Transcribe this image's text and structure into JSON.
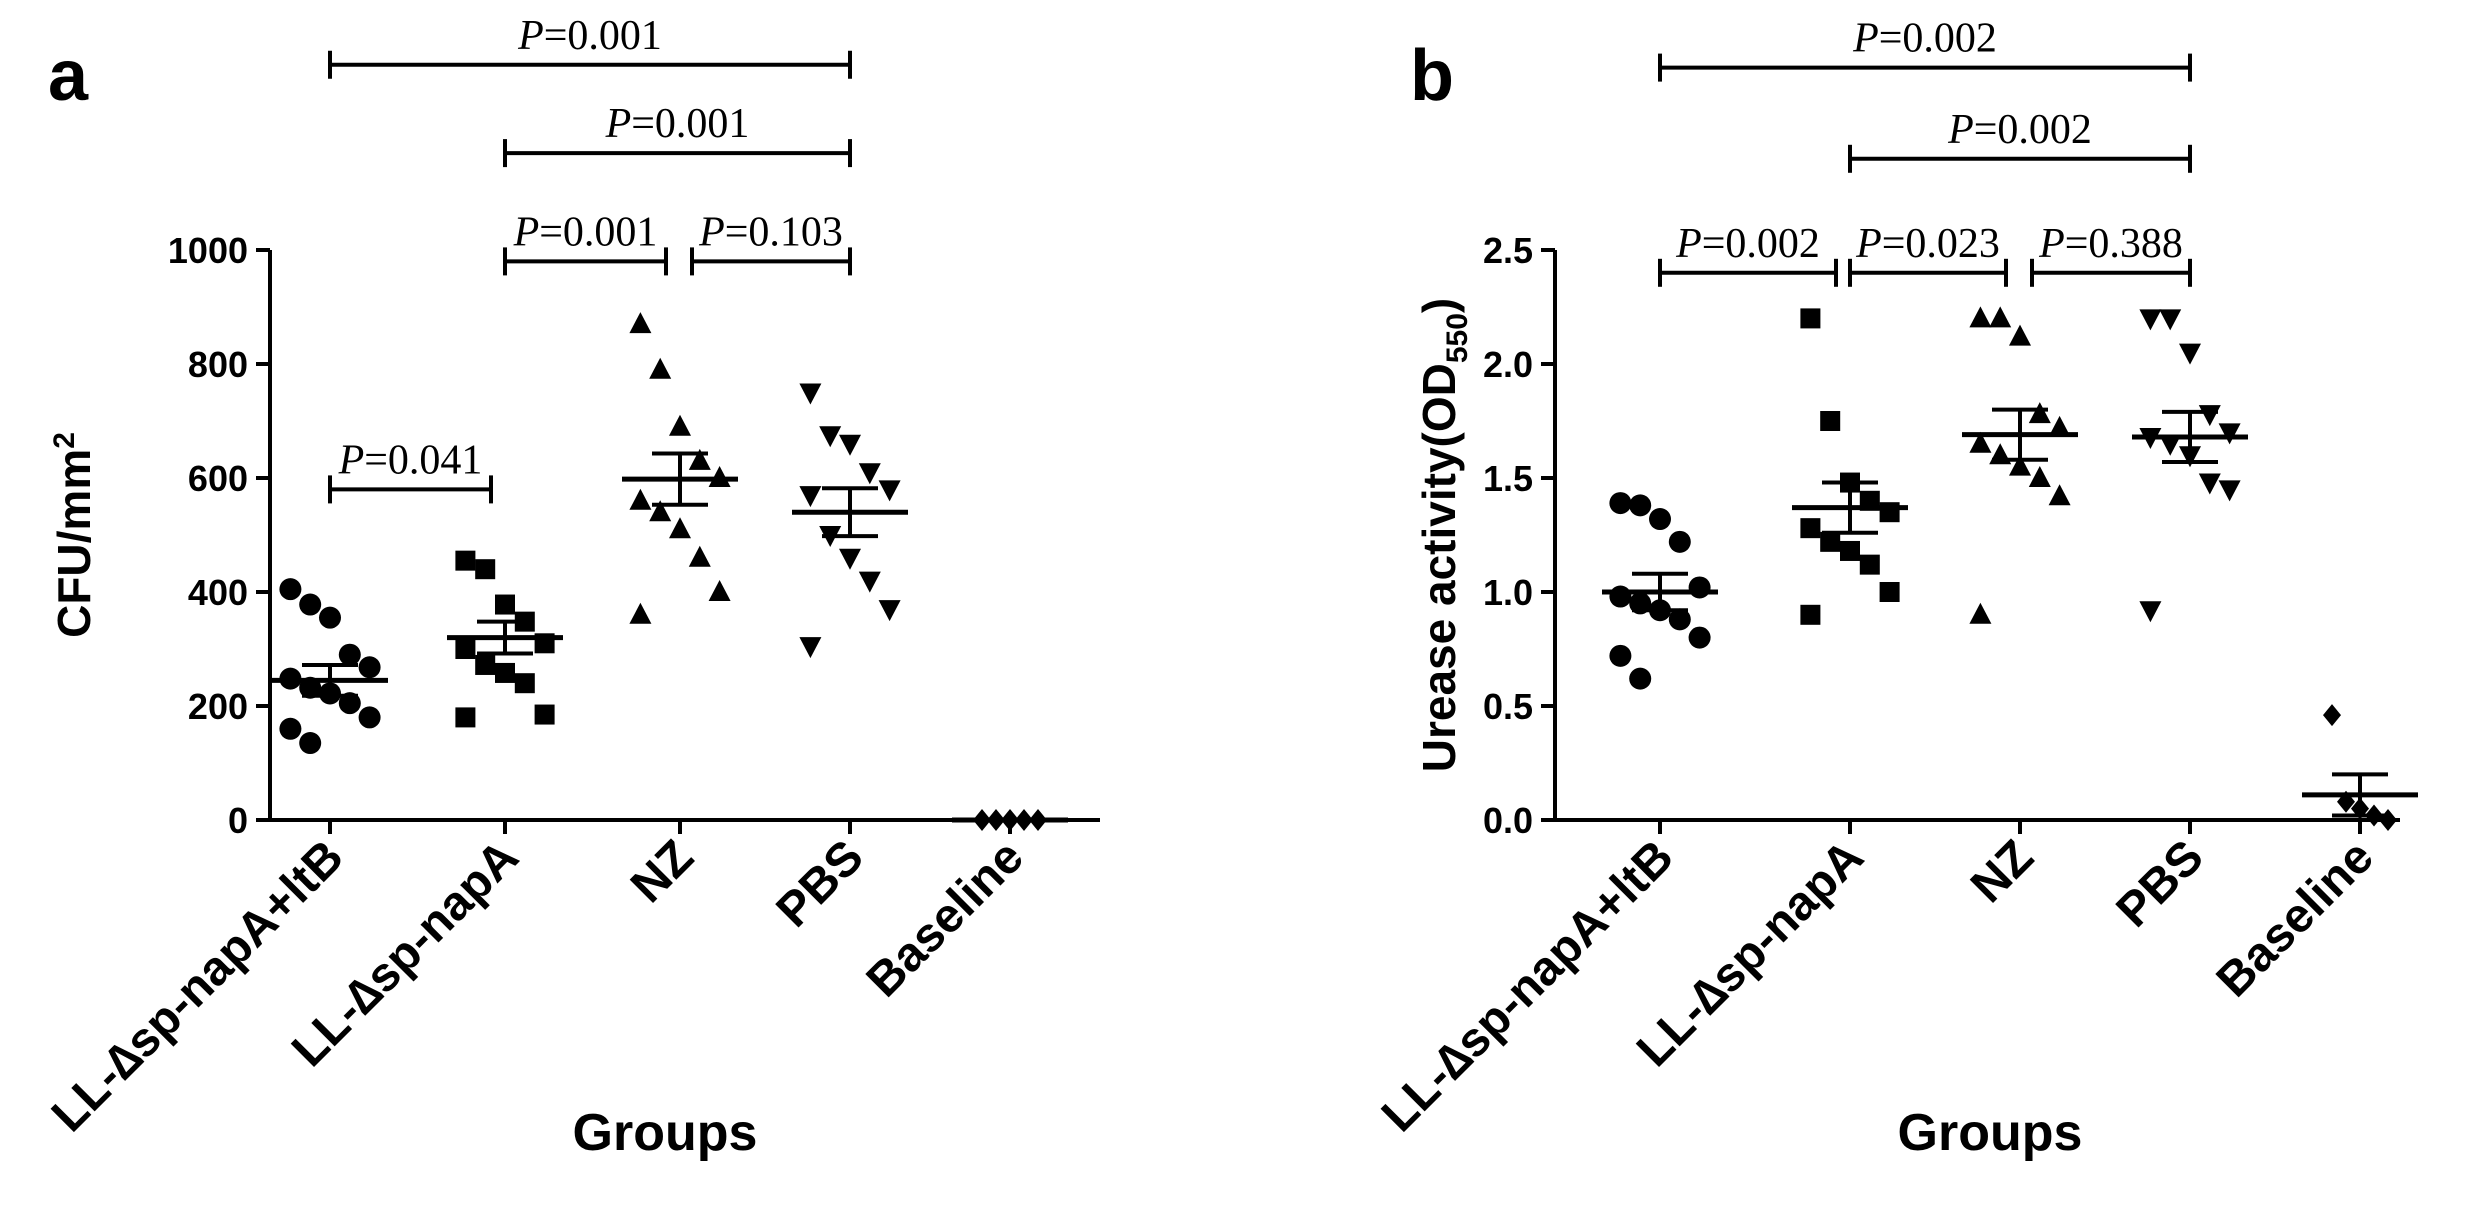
{
  "chart_data": [
    {
      "panel": "a",
      "type": "scatter",
      "ylabel_main": "CFU/mm",
      "ylabel_sup": "2",
      "xlabel": "Groups",
      "ylim": [
        0,
        1000
      ],
      "yticks": [
        "0",
        "200",
        "400",
        "600",
        "800",
        "1000"
      ],
      "categories": [
        "LL-∆sp-napA+ltB",
        "LL-∆sp-napA",
        "NZ",
        "PBS",
        "Baseline"
      ],
      "markers": [
        "circle",
        "square",
        "triangle-up",
        "triangle-down",
        "diamond"
      ],
      "groups": [
        {
          "values": [
            405,
            378,
            355,
            290,
            268,
            248,
            232,
            222,
            205,
            180,
            160,
            135
          ],
          "mean": 245,
          "sem": 27
        },
        {
          "values": [
            455,
            440,
            378,
            348,
            310,
            300,
            272,
            258,
            240,
            185,
            180
          ],
          "mean": 320,
          "sem": 28
        },
        {
          "values": [
            870,
            790,
            690,
            630,
            600,
            560,
            540,
            510,
            460,
            400,
            360
          ],
          "mean": 598,
          "sem": 45
        },
        {
          "values": [
            750,
            675,
            660,
            610,
            580,
            570,
            500,
            460,
            420,
            370,
            305
          ],
          "mean": 540,
          "sem": 42
        },
        {
          "values": [
            0,
            0,
            0,
            0,
            0
          ],
          "mean": 0,
          "sem": 0
        }
      ],
      "comparisons": [
        {
          "p_label": "P",
          "p_value": "=0.041",
          "from": 0,
          "to": 1,
          "y": 580
        },
        {
          "p_label": "P",
          "p_value": "=0.001",
          "from": 1,
          "to": 2,
          "y": 980
        },
        {
          "p_label": "P",
          "p_value": "=0.103",
          "from": 2,
          "to": 3,
          "y": 980
        },
        {
          "p_label": "P",
          "p_value": "=0.001",
          "from": 1,
          "to": 3,
          "y": 1170
        },
        {
          "p_label": "P",
          "p_value": "=0.001",
          "from": 0,
          "to": 3,
          "y": 1325
        }
      ]
    },
    {
      "panel": "b",
      "type": "scatter",
      "ylabel_main": "Urease activity(OD",
      "ylabel_sub": "550",
      "ylabel_end": ")",
      "xlabel": "Groups",
      "ylim": [
        0,
        2.5
      ],
      "yticks": [
        "0.0",
        "0.5",
        "1.0",
        "1.5",
        "2.0",
        "2.5"
      ],
      "categories": [
        "LL-∆sp-napA+ltB",
        "LL-∆sp-napA",
        "NZ",
        "PBS",
        "Baseline"
      ],
      "markers": [
        "circle",
        "square",
        "triangle-up",
        "triangle-down",
        "diamond"
      ],
      "groups": [
        {
          "values": [
            1.39,
            1.38,
            1.32,
            1.22,
            1.02,
            0.98,
            0.95,
            0.92,
            0.88,
            0.8,
            0.72,
            0.62
          ],
          "mean": 1.0,
          "sem": 0.08
        },
        {
          "values": [
            2.2,
            1.75,
            1.48,
            1.4,
            1.35,
            1.28,
            1.22,
            1.18,
            1.12,
            1.0,
            0.9
          ],
          "mean": 1.37,
          "sem": 0.11
        },
        {
          "values": [
            2.2,
            2.2,
            2.12,
            1.78,
            1.72,
            1.65,
            1.6,
            1.55,
            1.5,
            1.42,
            0.9
          ],
          "mean": 1.69,
          "sem": 0.11
        },
        {
          "values": [
            2.2,
            2.2,
            2.05,
            1.78,
            1.7,
            1.68,
            1.65,
            1.6,
            1.48,
            1.45,
            0.92
          ],
          "mean": 1.68,
          "sem": 0.11
        },
        {
          "values": [
            0.46,
            0.08,
            0.05,
            0.02,
            0.0
          ],
          "mean": 0.11,
          "sem": 0.09
        }
      ],
      "comparisons": [
        {
          "p_label": "P",
          "p_value": "=0.002",
          "from": 0,
          "to": 1,
          "y": 2.4
        },
        {
          "p_label": "P",
          "p_value": "=0.023",
          "from": 1,
          "to": 2,
          "y": 2.4
        },
        {
          "p_label": "P",
          "p_value": "=0.388",
          "from": 2,
          "to": 3,
          "y": 2.4
        },
        {
          "p_label": "P",
          "p_value": "=0.002",
          "from": 1,
          "to": 3,
          "y": 2.9
        },
        {
          "p_label": "P",
          "p_value": "=0.002",
          "from": 0,
          "to": 3,
          "y": 3.3
        }
      ]
    }
  ]
}
